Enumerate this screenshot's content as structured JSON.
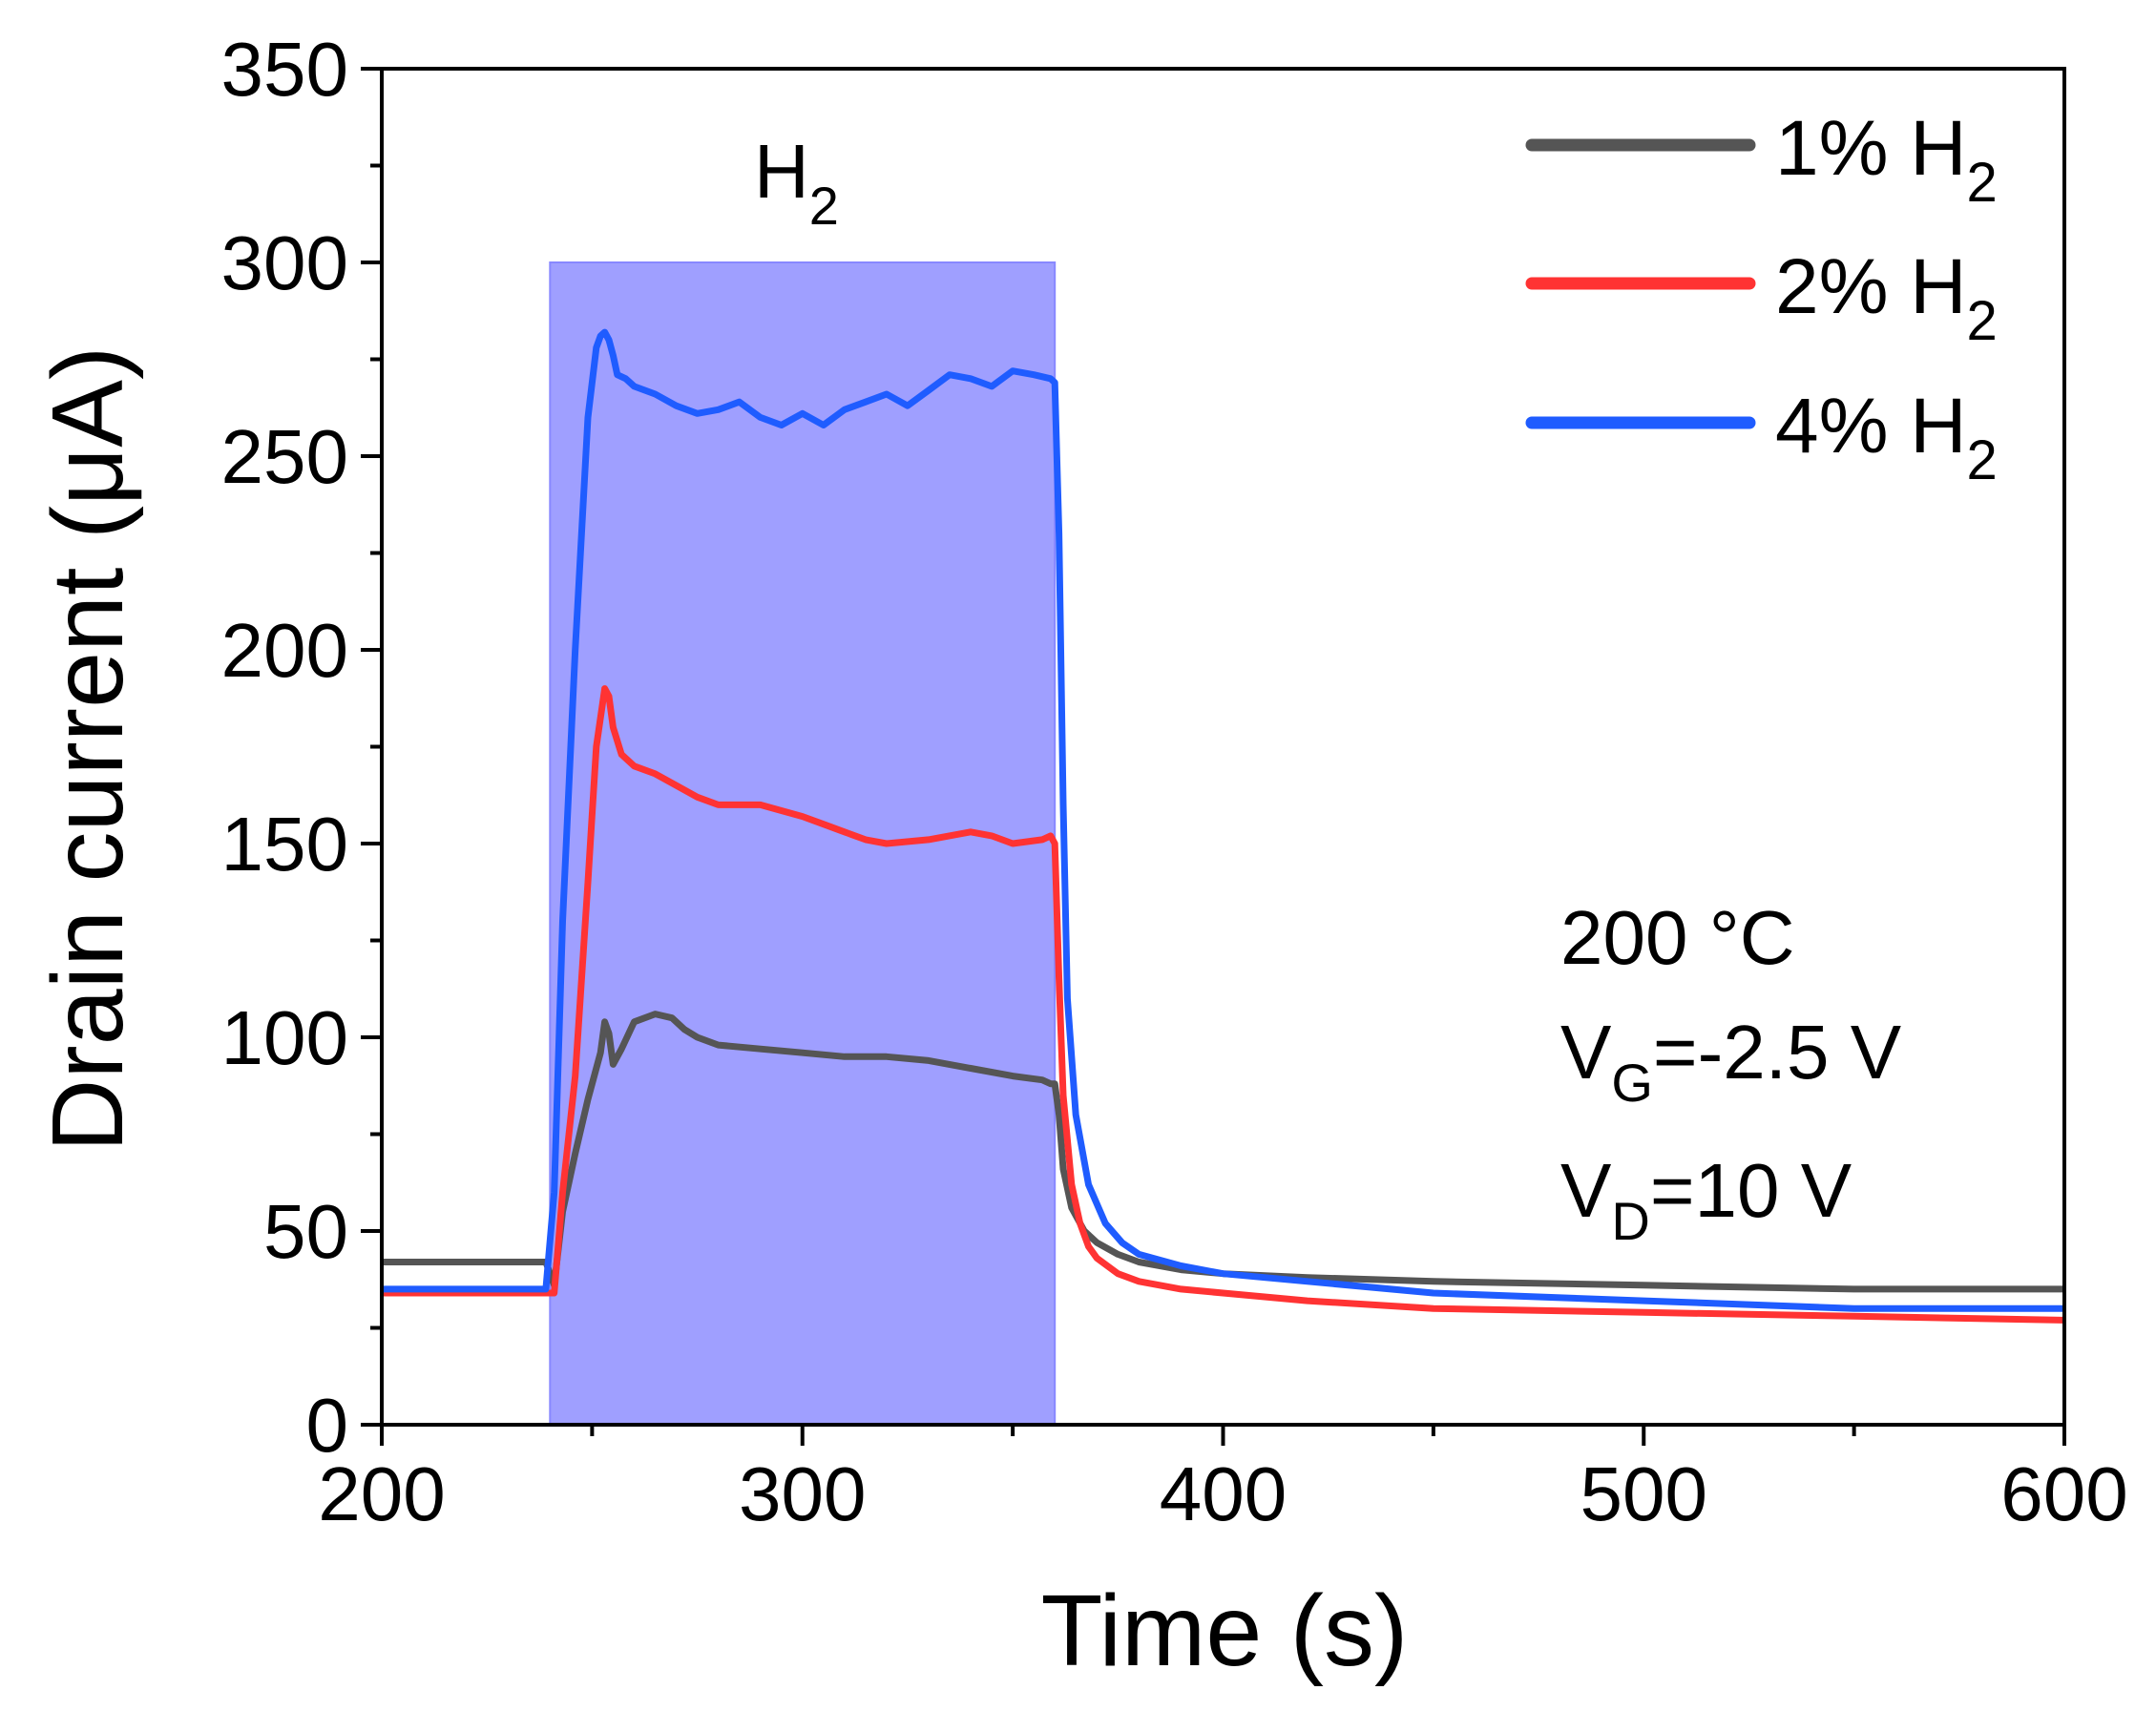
{
  "chart_data": {
    "type": "line",
    "title": "",
    "xlabel": "Time (s)",
    "ylabel": "Drain current (μA)",
    "xlim": [
      200,
      600
    ],
    "ylim": [
      0,
      350
    ],
    "xticks": [
      "200",
      "300",
      "400",
      "500",
      "600"
    ],
    "yticks": [
      "0",
      "50",
      "100",
      "150",
      "200",
      "250",
      "300",
      "350"
    ],
    "shaded_region": {
      "x": [
        240,
        360
      ],
      "y": [
        0,
        300
      ],
      "label": "H",
      "label_sub": "2",
      "color": "#7b7bff"
    },
    "annotation": {
      "temp": "200 °C",
      "vg_main": "V",
      "vg_sub": "G",
      "vg_rest": "=-2.5 V",
      "vd_main": "V",
      "vd_sub": "D",
      "vd_rest": "=10 V"
    },
    "series": [
      {
        "name": "1% H2",
        "label_main": "1% H",
        "label_sub": "2",
        "color": "#555555",
        "x": [
          200,
          210,
          220,
          230,
          239,
          241,
          243,
          246,
          249,
          252,
          253,
          254,
          255,
          257,
          260,
          265,
          269,
          272,
          275,
          280,
          290,
          300,
          310,
          320,
          330,
          340,
          350,
          357,
          359,
          360,
          361,
          362,
          364,
          367,
          370,
          375,
          380,
          390,
          400,
          420,
          450,
          500,
          550,
          600
        ],
        "y": [
          42,
          42,
          42,
          42,
          42,
          36,
          55,
          70,
          84,
          96,
          104,
          101,
          93,
          97,
          104,
          106,
          105,
          102,
          100,
          98,
          97,
          96,
          95,
          95,
          94,
          92,
          90,
          89,
          88,
          88,
          80,
          66,
          56,
          50,
          47,
          44,
          42,
          40,
          39,
          38,
          37,
          36,
          35,
          35
        ]
      },
      {
        "name": "2% H2",
        "label_main": "2% H",
        "label_sub": "2",
        "color": "#ff3333",
        "x": [
          200,
          210,
          220,
          230,
          241,
          243,
          246,
          249,
          251,
          253,
          254,
          255,
          257,
          260,
          265,
          270,
          275,
          280,
          290,
          300,
          305,
          310,
          315,
          320,
          330,
          340,
          345,
          350,
          357,
          359,
          360,
          361,
          362,
          364,
          366,
          368,
          370,
          375,
          380,
          390,
          400,
          420,
          450,
          500,
          550,
          600
        ],
        "y": [
          34,
          34,
          34,
          34,
          34,
          60,
          90,
          140,
          175,
          190,
          188,
          180,
          173,
          170,
          168,
          165,
          162,
          160,
          160,
          157,
          155,
          153,
          151,
          150,
          151,
          153,
          152,
          150,
          151,
          152,
          150,
          115,
          85,
          62,
          52,
          46,
          43,
          39,
          37,
          35,
          34,
          32,
          30,
          29,
          28,
          27
        ]
      },
      {
        "name": "4% H2",
        "label_main": "4% H",
        "label_sub": "2",
        "color": "#1f5cff",
        "x": [
          200,
          210,
          220,
          230,
          239,
          241,
          243,
          246,
          249,
          251,
          252,
          253,
          254,
          255,
          256,
          258,
          260,
          265,
          270,
          275,
          280,
          285,
          290,
          295,
          300,
          305,
          310,
          315,
          320,
          325,
          330,
          335,
          340,
          345,
          350,
          355,
          359,
          360,
          361,
          362,
          363,
          365,
          368,
          372,
          376,
          380,
          390,
          400,
          420,
          450,
          500,
          550,
          600
        ],
        "y": [
          35,
          35,
          35,
          35,
          35,
          60,
          130,
          200,
          260,
          278,
          281,
          282,
          280,
          276,
          271,
          270,
          268,
          266,
          263,
          261,
          262,
          264,
          260,
          258,
          261,
          258,
          262,
          264,
          266,
          263,
          267,
          271,
          270,
          268,
          272,
          271,
          270,
          269,
          230,
          160,
          110,
          80,
          62,
          52,
          47,
          44,
          41,
          39,
          37,
          34,
          32,
          30,
          30
        ]
      }
    ]
  }
}
